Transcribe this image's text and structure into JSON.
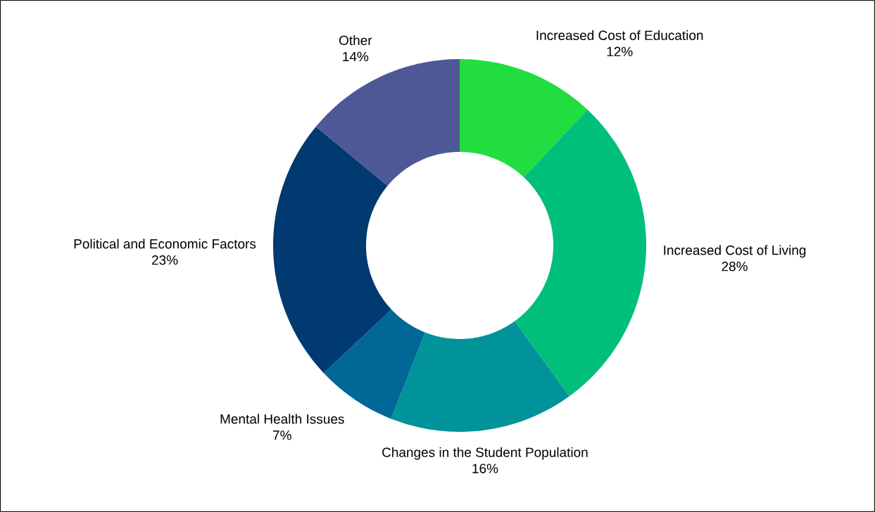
{
  "chart_data": {
    "type": "donut",
    "categories": [
      "Increased Cost of Education",
      "Increased Cost of Living",
      "Changes in the Student Population",
      "Mental Health Issues",
      "Political and Economic Factors",
      "Other"
    ],
    "values": [
      12,
      28,
      16,
      7,
      23,
      14
    ],
    "colors": [
      "#22dd3f",
      "#00bf7a",
      "#00939a",
      "#006797",
      "#003a70",
      "#4e5896"
    ],
    "value_labels": [
      "12%",
      "28%",
      "16%",
      "7%",
      "23%",
      "14%"
    ]
  }
}
